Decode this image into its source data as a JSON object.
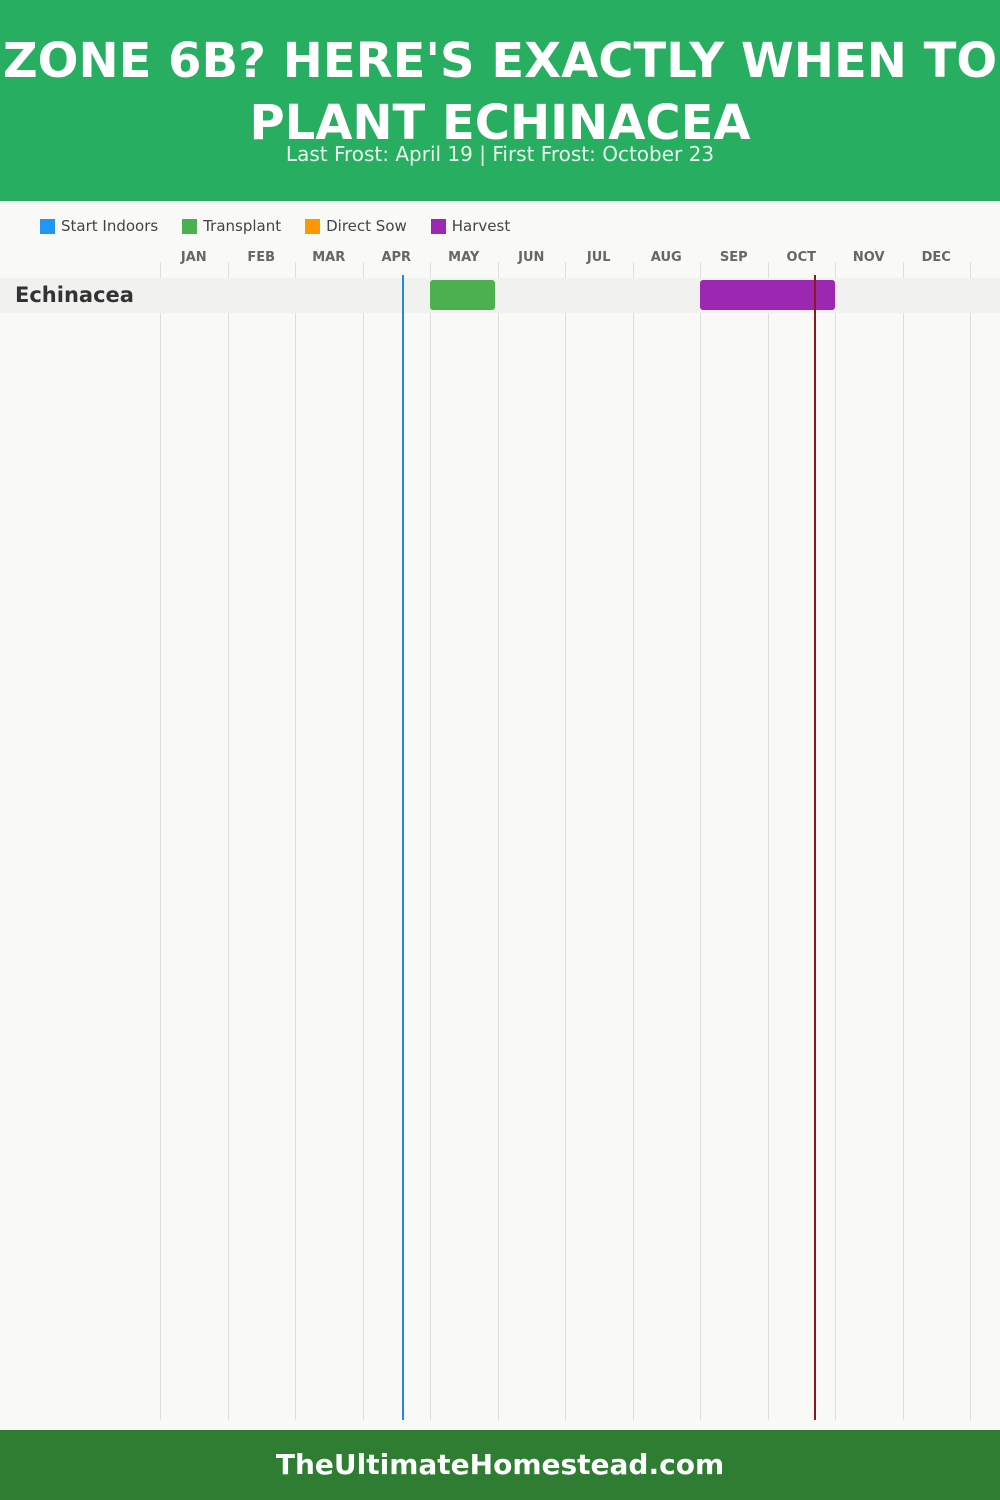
{
  "header": {
    "title": "ZONE 6B? HERE'S EXACTLY WHEN TO PLANT ECHINACEA",
    "subtitle": "Last Frost: April 19 | First Frost: October 23"
  },
  "footer": {
    "site": "TheUltimateHomestead.com"
  },
  "colors": {
    "header_bg": "#27ae60",
    "footer_bg": "#2e7d32",
    "start_indoors": "#2196f3",
    "transplant": "#4caf50",
    "direct_sow": "#ff9800",
    "harvest": "#9c27b0",
    "last_frost_line": "#1e88e5",
    "first_frost_line": "#8b1a1a"
  },
  "chart_data": {
    "type": "gantt",
    "months": [
      "JAN",
      "FEB",
      "MAR",
      "APR",
      "MAY",
      "JUN",
      "JUL",
      "AUG",
      "SEP",
      "OCT",
      "NOV",
      "DEC"
    ],
    "legend": [
      {
        "label": "Start Indoors",
        "color": "#2196f3"
      },
      {
        "label": "Transplant",
        "color": "#4caf50"
      },
      {
        "label": "Direct Sow",
        "color": "#ff9800"
      },
      {
        "label": "Harvest",
        "color": "#9c27b0"
      }
    ],
    "legend_placement": "top-left",
    "grid": true,
    "frost_dates": {
      "last_frost": {
        "month": 4,
        "day": 19,
        "color": "#1e88e5"
      },
      "first_frost": {
        "month": 10,
        "day": 23,
        "color": "#8b1a1a"
      }
    },
    "rows": [
      {
        "plant": "Echinacea",
        "tasks": [
          {
            "type": "Transplant",
            "start": {
              "month": 5,
              "day": 1
            },
            "end": {
              "month": 5,
              "day": 31
            }
          },
          {
            "type": "Harvest",
            "start": {
              "month": 9,
              "day": 1
            },
            "end": {
              "month": 11,
              "day": 1
            }
          }
        ]
      }
    ]
  }
}
